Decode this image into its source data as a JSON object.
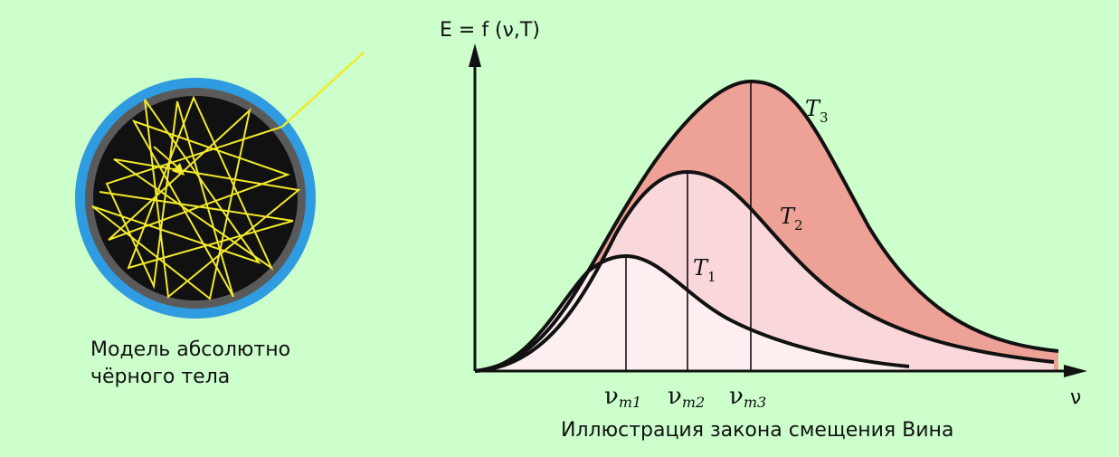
{
  "blackbody": {
    "caption_lines": [
      "Модель абсолютно",
      "чёрного тела"
    ],
    "colors": {
      "outer_ring": "#2f9be0",
      "inner_ring": "#5a5a5a",
      "cavity": "#111111",
      "ray": "#f2ea2a"
    }
  },
  "graph": {
    "y_axis_label": "E = f (ν,T)",
    "x_axis_label": "ν",
    "caption": "Иллюстрация закона смещения Вина",
    "curves": [
      {
        "label_main": "T",
        "label_sub": "1",
        "fill": "#fdeef0"
      },
      {
        "label_main": "T",
        "label_sub": "2",
        "fill": "#f9d7db"
      },
      {
        "label_main": "T",
        "label_sub": "3",
        "fill": "#eea196"
      }
    ],
    "peak_ticks": [
      {
        "main": "ν",
        "sub": "m1"
      },
      {
        "main": "ν",
        "sub": "m2"
      },
      {
        "main": "ν",
        "sub": "m3"
      }
    ]
  }
}
